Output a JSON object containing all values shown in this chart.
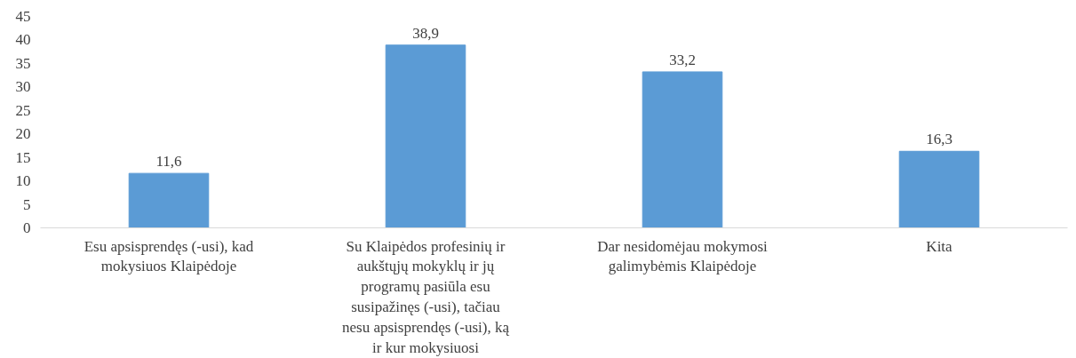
{
  "chart_data": {
    "type": "bar",
    "categories": [
      "Esu apsisprendęs (-usi), kad mokysiuos Klaipėdoje",
      "Su Klaipėdos profesinių ir aukštųjų mokyklų ir jų programų pasiūla esu susipažinęs (-usi), tačiau nesu apsisprendęs (-usi), ką ir kur mokysiuosi",
      "Dar nesidomėjau mokymosi galimybėmis Klaipėdoje",
      "Kita"
    ],
    "values": [
      11.6,
      38.9,
      33.2,
      16.3
    ],
    "value_labels": [
      "11,6",
      "38,9",
      "33,2",
      "16,3"
    ],
    "color": "#5b9bd5",
    "ylim": [
      0,
      45
    ],
    "yticks": [
      0,
      5,
      10,
      15,
      20,
      25,
      30,
      35,
      40,
      45
    ],
    "grid": false
  }
}
